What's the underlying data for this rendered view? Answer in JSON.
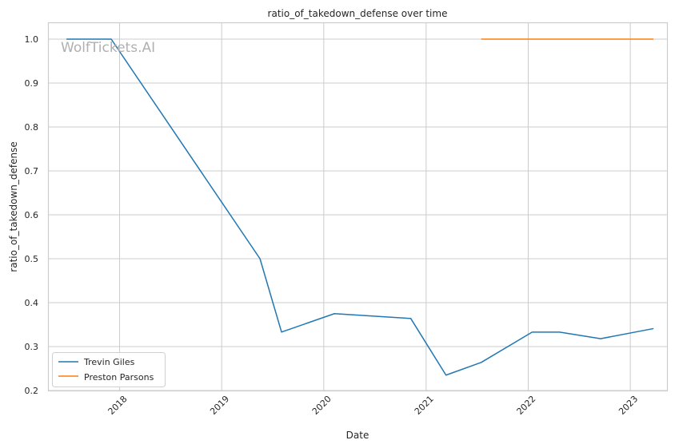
{
  "chart_data": {
    "type": "line",
    "title": "ratio_of_takedown_defense over time",
    "xlabel": "Date",
    "ylabel": "ratio_of_takedown_defense",
    "watermark": "WolfTickets.AI",
    "x_ticks": [
      "2018",
      "2019",
      "2020",
      "2021",
      "2022",
      "2023"
    ],
    "y_ticks": [
      "0.2",
      "0.3",
      "0.4",
      "0.5",
      "0.6",
      "0.7",
      "0.8",
      "0.9",
      "1.0"
    ],
    "xlim": [
      "2017-04-20",
      "2023-05-15"
    ],
    "ylim": [
      0.2,
      1.0
    ],
    "grid": true,
    "legend_position": "lower-left",
    "series": [
      {
        "name": "Trevin Giles",
        "color": "#1f77b4",
        "points": [
          {
            "x": "2017-06-25",
            "y": 1.0
          },
          {
            "x": "2017-12-02",
            "y": 1.0
          },
          {
            "x": "2019-05-18",
            "y": 0.5
          },
          {
            "x": "2019-08-03",
            "y": 0.333
          },
          {
            "x": "2020-02-08",
            "y": 0.375
          },
          {
            "x": "2020-11-07",
            "y": 0.364
          },
          {
            "x": "2021-03-13",
            "y": 0.235
          },
          {
            "x": "2021-07-17",
            "y": 0.264
          },
          {
            "x": "2022-01-15",
            "y": 0.333
          },
          {
            "x": "2022-04-23",
            "y": 0.333
          },
          {
            "x": "2022-09-17",
            "y": 0.318
          },
          {
            "x": "2023-03-25",
            "y": 0.341
          }
        ]
      },
      {
        "name": "Preston Parsons",
        "color": "#ff7f0e",
        "points": [
          {
            "x": "2021-07-17",
            "y": 1.0
          },
          {
            "x": "2021-12-18",
            "y": 1.0
          },
          {
            "x": "2022-06-18",
            "y": 1.0
          },
          {
            "x": "2022-10-29",
            "y": 1.0
          },
          {
            "x": "2023-03-25",
            "y": 1.0
          }
        ]
      }
    ]
  }
}
